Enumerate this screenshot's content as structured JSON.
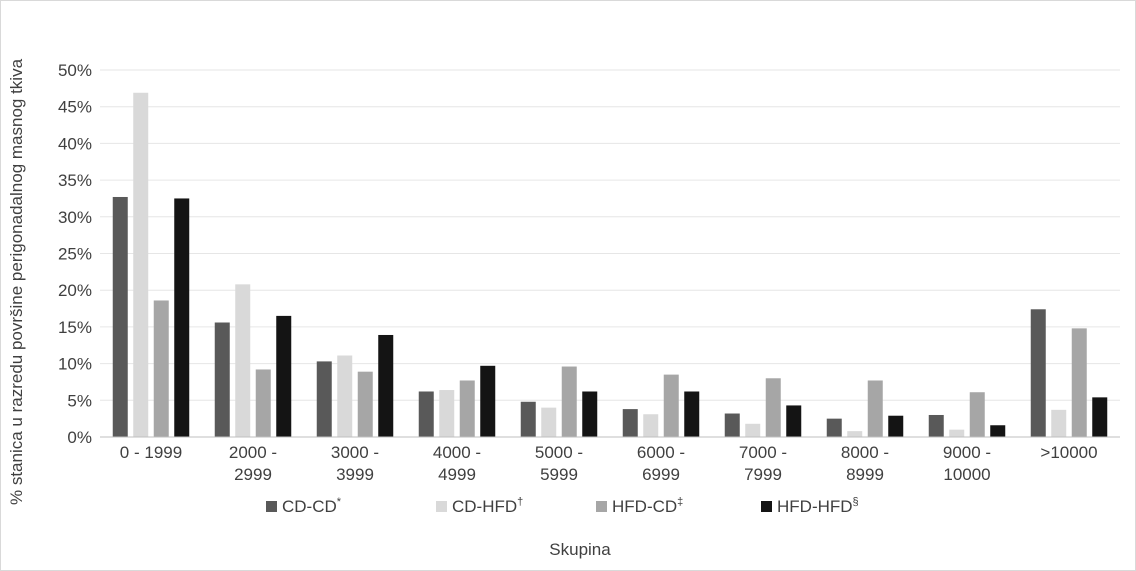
{
  "chart_data": {
    "type": "bar",
    "title": "",
    "xlabel": "Skupina",
    "ylabel": "% stanica u razredu površine perigonadalnog masnog tkiva",
    "ylim": [
      0,
      50
    ],
    "ytick_step": 5,
    "ytick_format": "{v}%",
    "grid": true,
    "legend_position": "bottom",
    "categories": [
      [
        "0 - 1999"
      ],
      [
        "2000 -",
        "2999"
      ],
      [
        "3000 -",
        "3999"
      ],
      [
        "4000 -",
        "4999"
      ],
      [
        "5000 -",
        "5999"
      ],
      [
        "6000 -",
        "6999"
      ],
      [
        "7000 -",
        "7999"
      ],
      [
        "8000 -",
        "8999"
      ],
      [
        "9000 -",
        "10000"
      ],
      [
        ">10000"
      ]
    ],
    "series": [
      {
        "name": "CD-CD",
        "sup": "*",
        "color": "#595959",
        "values": [
          32.7,
          15.6,
          10.3,
          6.2,
          4.8,
          3.8,
          3.2,
          2.5,
          3.0,
          17.4
        ]
      },
      {
        "name": "CD-HFD",
        "sup": "†",
        "color": "#d9d9d9",
        "values": [
          46.9,
          20.8,
          11.1,
          6.4,
          4.0,
          3.1,
          1.8,
          0.8,
          1.0,
          3.7
        ]
      },
      {
        "name": "HFD-CD",
        "sup": "‡",
        "color": "#a6a6a6",
        "values": [
          18.6,
          9.2,
          8.9,
          7.7,
          9.6,
          8.5,
          8.0,
          7.7,
          6.1,
          14.8
        ]
      },
      {
        "name": "HFD-HFD",
        "sup": "§",
        "color": "#141414",
        "values": [
          32.5,
          16.5,
          13.9,
          9.7,
          6.2,
          6.2,
          4.3,
          2.9,
          1.6,
          5.4
        ]
      }
    ]
  }
}
